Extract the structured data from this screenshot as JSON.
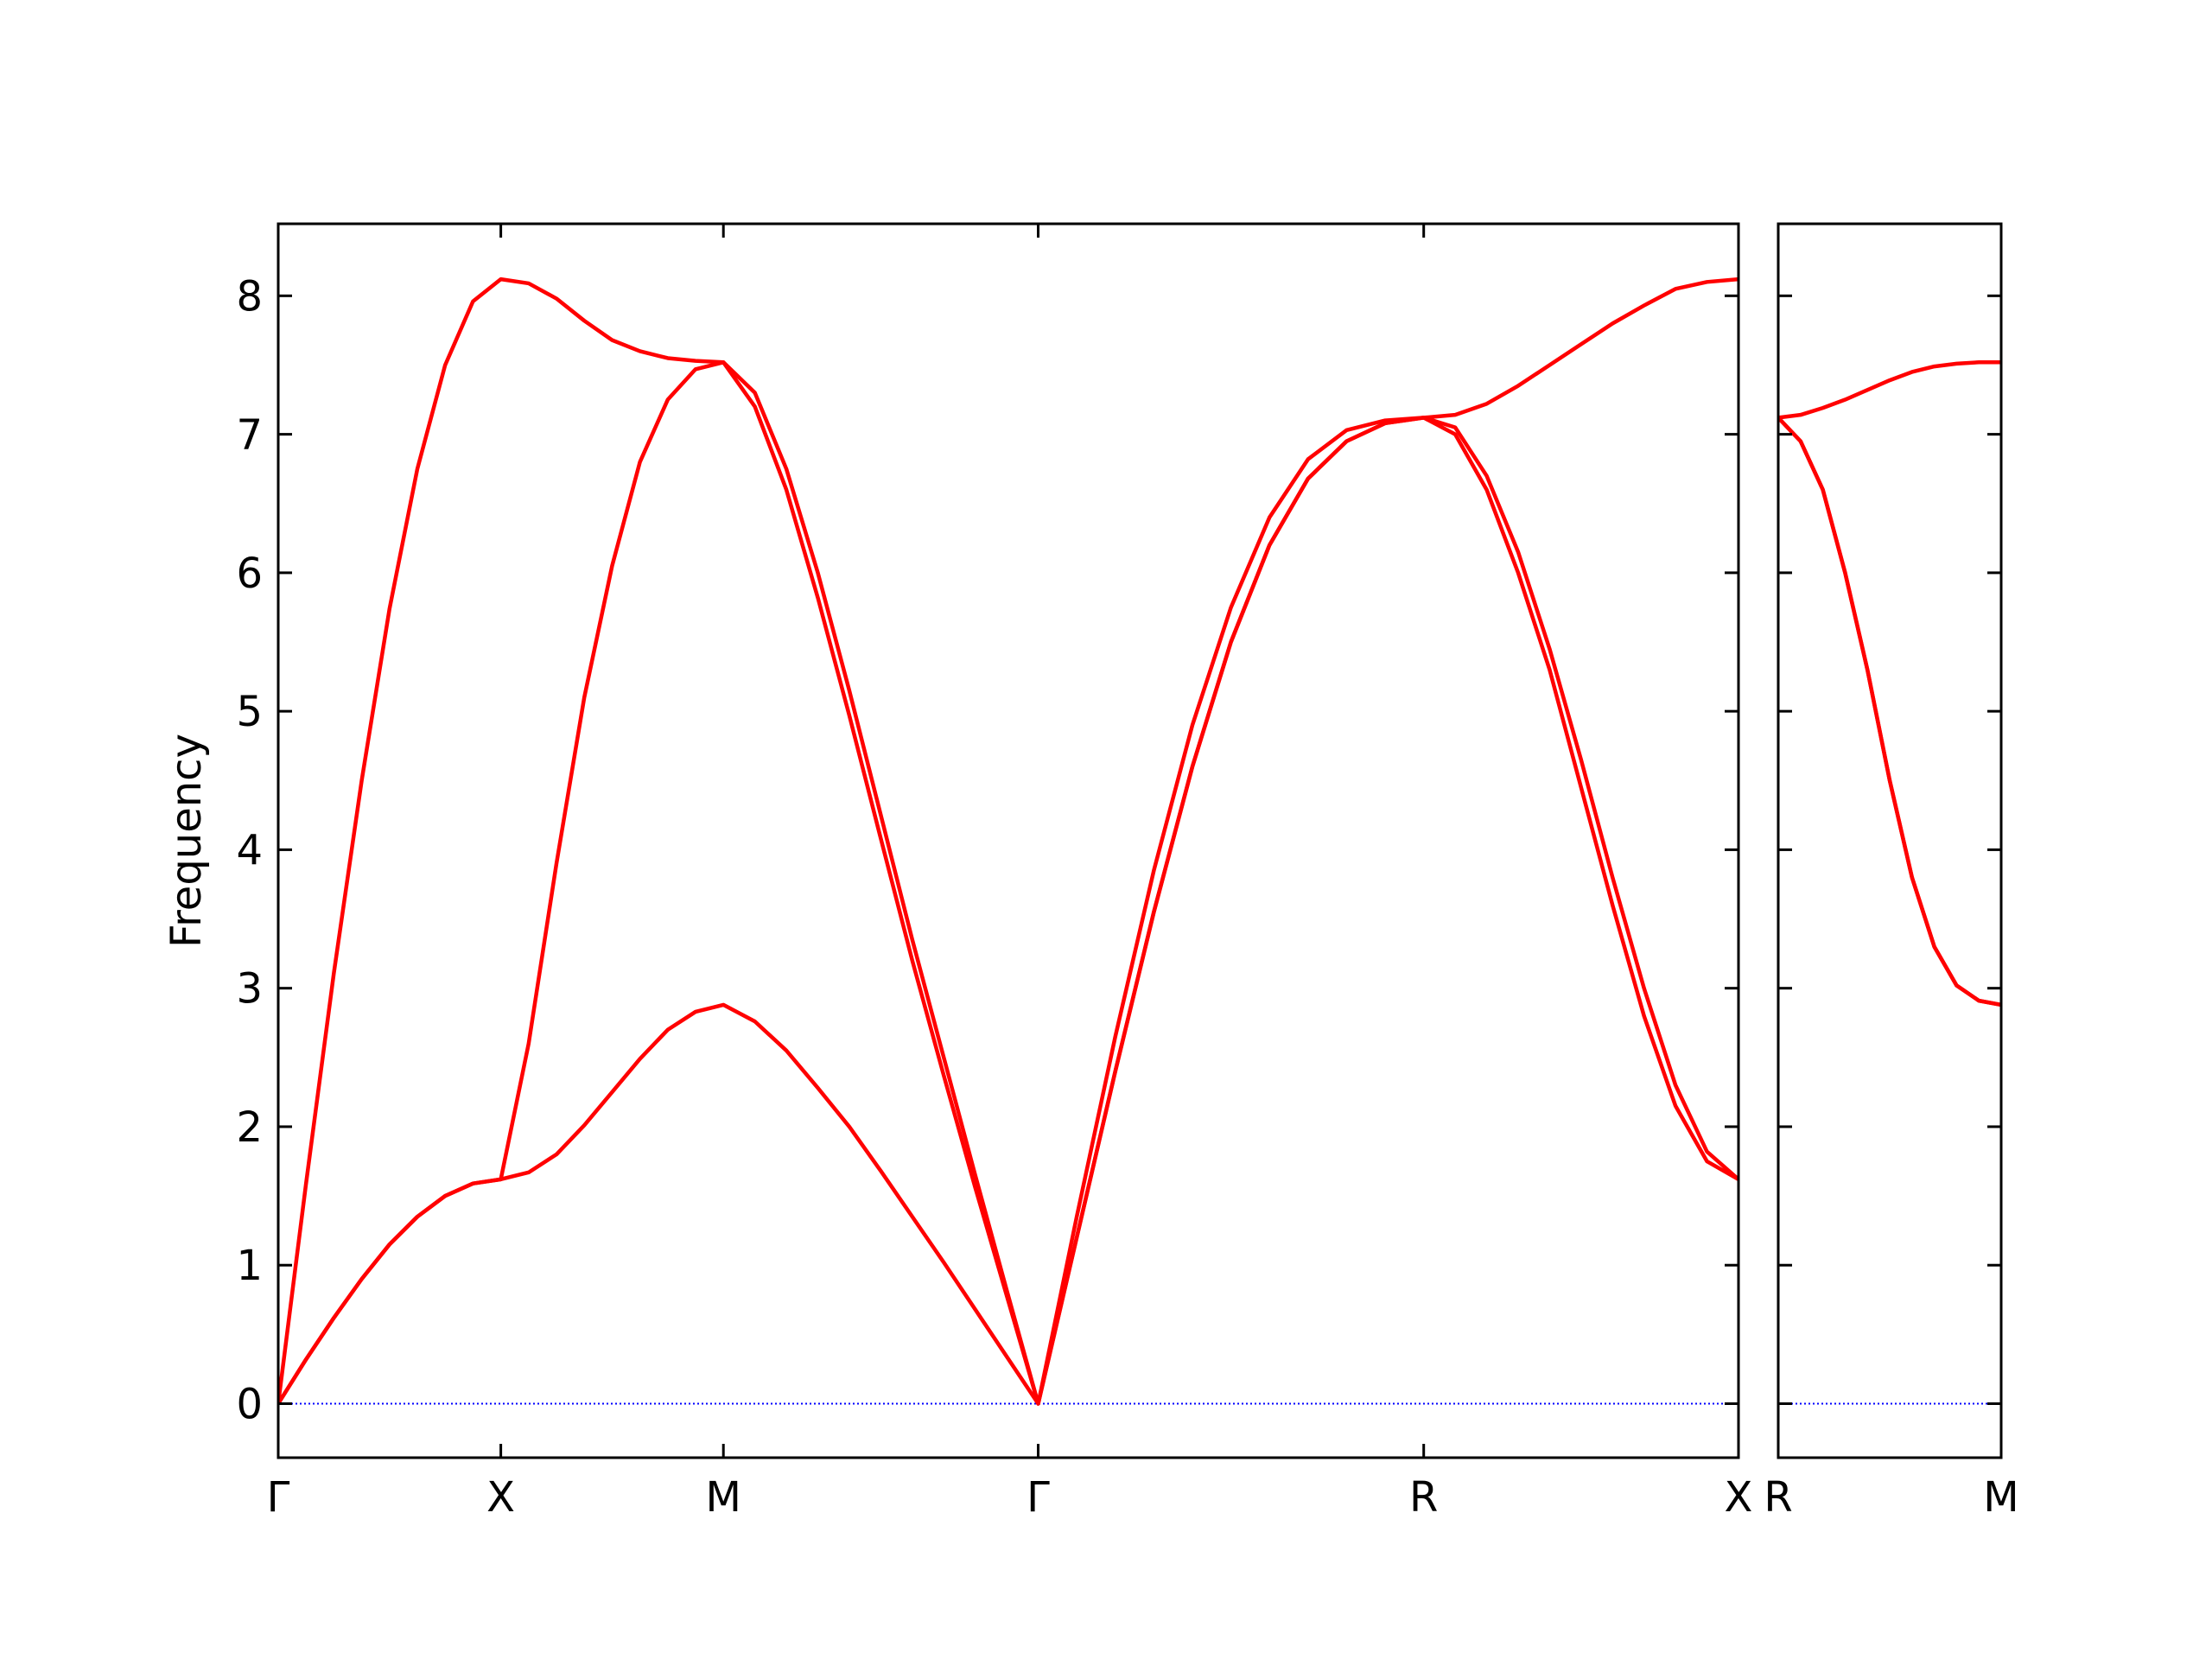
{
  "chart_data": [
    {
      "type": "line",
      "ylabel": "Frequency",
      "xlim": [
        0,
        3.2802
      ],
      "ylim": [
        -0.39,
        8.52
      ],
      "xticks": [
        {
          "value": 0,
          "label": "Γ"
        },
        {
          "value": 0.5,
          "label": "X"
        },
        {
          "value": 1.0,
          "label": "M"
        },
        {
          "value": 1.7071,
          "label": "Γ"
        },
        {
          "value": 2.5731,
          "label": "R"
        },
        {
          "value": 3.2802,
          "label": "X"
        }
      ],
      "yticks": [
        0,
        1,
        2,
        3,
        4,
        5,
        6,
        7,
        8
      ],
      "show_ytick_labels": true,
      "hline": {
        "value": 0,
        "color": "#0000ff"
      },
      "x": [
        0,
        0.0625,
        0.125,
        0.1875,
        0.25,
        0.3125,
        0.375,
        0.4375,
        0.5,
        0.5625,
        0.625,
        0.6875,
        0.75,
        0.8125,
        0.875,
        0.9375,
        1.0,
        1.0707,
        1.1414,
        1.2121,
        1.2828,
        1.3536,
        1.4243,
        1.495,
        1.5657,
        1.6364,
        1.7071,
        1.7937,
        1.8803,
        1.9669,
        2.0535,
        2.1401,
        2.2267,
        2.3133,
        2.3999,
        2.4865,
        2.5731,
        2.6438,
        2.7145,
        2.7852,
        2.8559,
        2.9266,
        2.9973,
        3.068,
        3.1387,
        3.2094,
        3.2802
      ],
      "series": [
        {
          "color": "#ff0000",
          "values": [
            0,
            0.32,
            0.62,
            0.9,
            1.15,
            1.35,
            1.5,
            1.59,
            1.62,
            1.67,
            1.8,
            2.01,
            2.25,
            2.49,
            2.7,
            2.83,
            2.88,
            2.76,
            2.55,
            2.28,
            2.0,
            1.68,
            1.35,
            1.02,
            0.68,
            0.34,
            0,
            1.2,
            2.4,
            3.55,
            4.6,
            5.5,
            6.2,
            6.68,
            6.95,
            7.08,
            7.12,
            7.0,
            6.6,
            6.0,
            5.3,
            4.45,
            3.6,
            2.8,
            2.15,
            1.75,
            1.62
          ]
        },
        {
          "color": "#ff0000",
          "values": [
            0,
            0.32,
            0.62,
            0.9,
            1.15,
            1.35,
            1.5,
            1.59,
            1.62,
            2.6,
            3.9,
            5.1,
            6.05,
            6.8,
            7.25,
            7.47,
            7.52,
            7.2,
            6.6,
            5.82,
            4.97,
            4.08,
            3.2,
            2.37,
            1.56,
            0.78,
            0,
            1.2,
            2.4,
            3.55,
            4.6,
            5.5,
            6.2,
            6.68,
            6.95,
            7.08,
            7.12,
            7.05,
            6.7,
            6.15,
            5.45,
            4.65,
            3.8,
            3.0,
            2.3,
            1.82,
            1.62
          ]
        },
        {
          "color": "#ff0000",
          "values": [
            0,
            1.59,
            3.11,
            4.5,
            5.74,
            6.75,
            7.5,
            7.96,
            8.12,
            8.09,
            7.98,
            7.82,
            7.68,
            7.6,
            7.55,
            7.53,
            7.52,
            7.3,
            6.75,
            6.0,
            5.15,
            4.25,
            3.35,
            2.5,
            1.65,
            0.82,
            0,
            1.35,
            2.65,
            3.85,
            4.9,
            5.75,
            6.4,
            6.82,
            7.03,
            7.1,
            7.12,
            7.14,
            7.22,
            7.35,
            7.5,
            7.65,
            7.8,
            7.93,
            8.05,
            8.1,
            8.12
          ]
        }
      ]
    },
    {
      "type": "line",
      "xlim": [
        0,
        0.5
      ],
      "ylim": [
        -0.39,
        8.52
      ],
      "xticks": [
        {
          "value": 0,
          "label": "R"
        },
        {
          "value": 0.5,
          "label": "M"
        }
      ],
      "yticks": [
        0,
        1,
        2,
        3,
        4,
        5,
        6,
        7,
        8
      ],
      "show_ytick_labels": false,
      "hline": {
        "value": 0,
        "color": "#0000ff"
      },
      "x": [
        0,
        0.05,
        0.1,
        0.15,
        0.2,
        0.25,
        0.3,
        0.35,
        0.4,
        0.45,
        0.5
      ],
      "series": [
        {
          "color": "#ff0000",
          "values": [
            7.12,
            6.95,
            6.6,
            6.0,
            5.3,
            4.5,
            3.8,
            3.3,
            3.02,
            2.91,
            2.88
          ]
        },
        {
          "color": "#ff0000",
          "values": [
            7.12,
            6.95,
            6.6,
            6.0,
            5.3,
            4.5,
            3.8,
            3.3,
            3.02,
            2.91,
            2.88
          ]
        },
        {
          "color": "#ff0000",
          "values": [
            7.12,
            7.14,
            7.19,
            7.25,
            7.32,
            7.39,
            7.45,
            7.49,
            7.51,
            7.52,
            7.52
          ]
        }
      ]
    }
  ]
}
